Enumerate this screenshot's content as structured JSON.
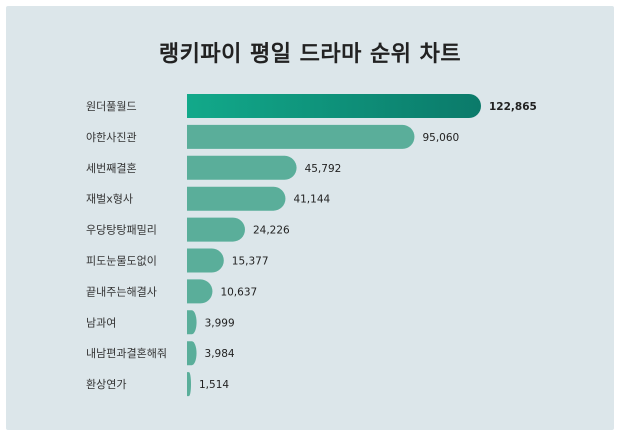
{
  "chart_data": {
    "type": "bar",
    "orientation": "horizontal",
    "title": "랭키파이 평일 드라마 순위 차트",
    "categories": [
      "원더풀월드",
      "야한사진관",
      "세번째결혼",
      "재벌x형사",
      "우당탕탕패밀리",
      "피도눈물도없이",
      "끝내주는해결사",
      "남과여",
      "내남편과결혼해줘",
      "환상연가"
    ],
    "values": [
      122865,
      95060,
      45792,
      41144,
      24226,
      15377,
      10637,
      3999,
      3984,
      1514
    ],
    "value_labels": [
      "122,865",
      "95,060",
      "45,792",
      "41,144",
      "24,226",
      "15,377",
      "10,637",
      "3,999",
      "3,984",
      "1,514"
    ],
    "xlabel": "",
    "ylabel": "",
    "grid": false,
    "legend": "none"
  },
  "colors": {
    "background": "#dce6ea",
    "bar": "#5aae9a",
    "top_bar_start": "#12a98a",
    "top_bar_end": "#0b7a6a"
  }
}
